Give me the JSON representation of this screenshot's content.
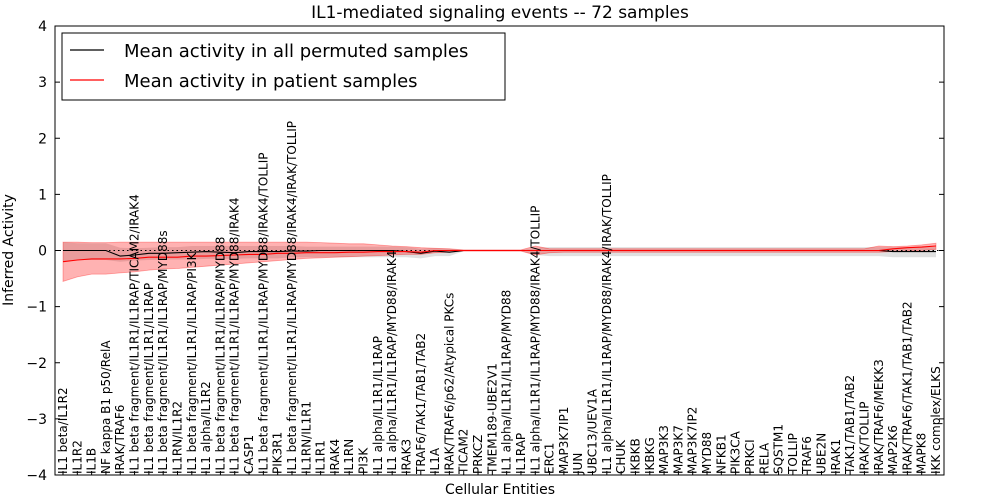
{
  "chart_data": {
    "type": "line",
    "title": "IL1-mediated signaling events -- 72 samples",
    "xlabel": "Cellular Entities",
    "ylabel": "Inferred Activity",
    "ylim": [
      -4,
      4
    ],
    "yticks": [
      -4,
      -3,
      -2,
      -1,
      0,
      1,
      2,
      3,
      4
    ],
    "legend_position": "top-left",
    "colors": {
      "permuted_line": "#000000",
      "patient_line": "#ff0000",
      "permuted_band": "#bbbbbb",
      "patient_band": "#ff0000"
    },
    "categories": [
      "IL1 beta/IL1R2",
      "IL1R2",
      "IL1B",
      "NF kappa B1 p50/RelA",
      "IRAK/TRAF6",
      "IL1 beta fragment/IL1R1/IL1RAP/TICAM2/IRAK4",
      "IL1 beta fragment/IL1R1/IL1RAP",
      "IL1 beta fragment/IL1R1/IL1RAP/MYD88s",
      "IL1RN/IL1R2",
      "IL1 beta fragment/IL1R1/IL1RAP/PI3K",
      "IL1 alpha/IL1R2",
      "IL1 beta fragment/IL1R1/IL1RAP/MYD88",
      "IL1 beta fragment/IL1R1/IL1RAP/MYD88/IRAK4",
      "CASP1",
      "IL1 beta fragment/IL1R1/IL1RAP/MYD88/IRAK4/TOLLIP",
      "PIK3R1",
      "IL1 beta fragment/IL1R1/IL1RAP/MYD88/IRAK4/IRAK/TOLLIP",
      "IL1RN/IL1R1",
      "IL1R1",
      "IRAK4",
      "IL1RN",
      "PI3K",
      "IL1 alpha/IL1R1/IL1RAP",
      "IL1 alpha/IL1R1/IL1RAP/MYD88/IRAK4",
      "IRAK3",
      "TRAF6/TAK1/TAB1/TAB2",
      "IL1A",
      "IRAK/TRAF6/p62/Atypical PKCs",
      "TICAM2",
      "PRKCZ",
      "TMEM189-UBE2V1",
      "IL1 alpha/IL1R1/IL1RAP/MYD88",
      "IL1RAP",
      "IL1 alpha/IL1R1/IL1RAP/MYD88/IRAK4/TOLLIP",
      "ERC1",
      "MAP3K7IP1",
      "JUN",
      "UBC13/UEV1A",
      "IL1 alpha/IL1R1/IL1RAP/MYD88/IRAK4/IRAK/TOLLIP",
      "CHUK",
      "IKBKB",
      "IKBKG",
      "MAP3K3",
      "MAP3K7",
      "MAP3K7IP2",
      "MYD88",
      "NFKB1",
      "PIK3CA",
      "PRKCI",
      "RELA",
      "SQSTM1",
      "TOLLIP",
      "TRAF6",
      "UBE2N",
      "IRAK1",
      "TAK1/TAB1/TAB2",
      "IRAK/TOLLIP",
      "IRAK/TRAF6/MEKK3",
      "MAP2K6",
      "IRAK/TRAF6/TAK1/TAB1/TAB2",
      "MAPK8",
      "IKK complex/ELKS"
    ],
    "series": [
      {
        "name": "Mean activity in all permuted samples",
        "values": [
          0.0,
          0.0,
          0.0,
          0.0,
          -0.1,
          -0.08,
          -0.05,
          -0.05,
          -0.04,
          -0.03,
          -0.02,
          -0.03,
          -0.04,
          -0.02,
          -0.02,
          -0.02,
          -0.01,
          -0.01,
          0.0,
          0.0,
          0.0,
          0.0,
          0.0,
          0.0,
          -0.02,
          -0.05,
          -0.01,
          -0.03,
          0.0,
          0.0,
          0.0,
          0.0,
          0.0,
          0.0,
          0.0,
          0.0,
          0.0,
          0.0,
          0.0,
          0.0,
          0.0,
          0.0,
          0.0,
          0.0,
          0.0,
          0.0,
          0.0,
          0.0,
          0.0,
          0.0,
          0.0,
          0.0,
          0.0,
          0.0,
          0.0,
          0.0,
          0.0,
          0.0,
          -0.02,
          -0.02,
          -0.02,
          -0.02
        ],
        "lower": [
          -0.2,
          -0.17,
          -0.17,
          -0.17,
          -0.2,
          -0.18,
          -0.17,
          -0.16,
          -0.16,
          -0.16,
          -0.15,
          -0.15,
          -0.15,
          -0.14,
          -0.14,
          -0.14,
          -0.12,
          -0.12,
          -0.12,
          -0.12,
          -0.12,
          -0.12,
          -0.12,
          -0.12,
          -0.12,
          -0.14,
          -0.1,
          -0.1,
          -0.01,
          -0.01,
          -0.01,
          -0.01,
          -0.01,
          -0.08,
          -0.1,
          -0.1,
          -0.1,
          -0.1,
          -0.1,
          -0.1,
          -0.1,
          -0.1,
          -0.1,
          -0.1,
          -0.1,
          -0.1,
          -0.1,
          -0.1,
          -0.1,
          -0.1,
          -0.1,
          -0.1,
          -0.1,
          -0.1,
          -0.1,
          -0.1,
          -0.1,
          -0.1,
          -0.12,
          -0.12,
          -0.12,
          -0.12
        ],
        "upper": [
          0.15,
          0.13,
          0.13,
          0.13,
          0.05,
          0.04,
          0.05,
          0.06,
          0.06,
          0.08,
          0.08,
          0.08,
          0.08,
          0.08,
          0.08,
          0.08,
          0.08,
          0.07,
          0.07,
          0.07,
          0.07,
          0.07,
          0.07,
          0.07,
          0.06,
          0.03,
          0.04,
          0.03,
          0.01,
          0.01,
          0.01,
          0.01,
          0.01,
          0.05,
          0.06,
          0.06,
          0.06,
          0.06,
          0.06,
          0.06,
          0.06,
          0.06,
          0.06,
          0.06,
          0.06,
          0.06,
          0.06,
          0.06,
          0.06,
          0.06,
          0.06,
          0.06,
          0.06,
          0.06,
          0.06,
          0.06,
          0.06,
          0.06,
          0.06,
          0.06,
          0.06,
          0.06
        ]
      },
      {
        "name": "Mean activity in patient samples",
        "values": [
          -0.2,
          -0.17,
          -0.15,
          -0.15,
          -0.15,
          -0.14,
          -0.12,
          -0.12,
          -0.12,
          -0.1,
          -0.1,
          -0.09,
          -0.08,
          -0.07,
          -0.07,
          -0.05,
          -0.05,
          -0.04,
          -0.04,
          -0.04,
          -0.03,
          -0.03,
          -0.02,
          -0.02,
          -0.02,
          -0.03,
          0.0,
          0.0,
          0.0,
          0.0,
          0.0,
          0.0,
          0.0,
          0.0,
          0.0,
          0.0,
          0.0,
          0.0,
          0.0,
          0.0,
          0.0,
          0.0,
          0.0,
          0.0,
          0.0,
          0.0,
          0.0,
          0.0,
          0.0,
          0.0,
          0.0,
          0.0,
          0.0,
          0.0,
          0.0,
          0.0,
          0.0,
          0.0,
          0.03,
          0.05,
          0.06,
          0.08
        ],
        "lower": [
          -0.55,
          -0.47,
          -0.42,
          -0.42,
          -0.4,
          -0.38,
          -0.35,
          -0.33,
          -0.32,
          -0.3,
          -0.28,
          -0.26,
          -0.24,
          -0.22,
          -0.2,
          -0.18,
          -0.16,
          -0.14,
          -0.13,
          -0.12,
          -0.11,
          -0.1,
          -0.09,
          -0.08,
          -0.07,
          -0.07,
          -0.04,
          -0.03,
          -0.01,
          -0.01,
          -0.01,
          -0.01,
          -0.01,
          -0.08,
          -0.04,
          -0.03,
          -0.03,
          -0.03,
          -0.03,
          -0.03,
          -0.03,
          -0.03,
          -0.03,
          -0.03,
          -0.03,
          -0.03,
          -0.03,
          -0.03,
          -0.03,
          -0.03,
          -0.03,
          -0.03,
          -0.03,
          -0.03,
          -0.03,
          -0.03,
          -0.03,
          -0.03,
          -0.02,
          -0.01,
          0.0,
          0.02
        ],
        "upper": [
          0.15,
          0.15,
          0.14,
          0.14,
          0.15,
          0.15,
          0.15,
          0.15,
          0.15,
          0.15,
          0.15,
          0.15,
          0.15,
          0.15,
          0.15,
          0.15,
          0.15,
          0.15,
          0.14,
          0.13,
          0.12,
          0.12,
          0.1,
          0.08,
          0.07,
          0.05,
          0.04,
          0.03,
          0.01,
          0.01,
          0.01,
          0.01,
          0.01,
          0.08,
          0.03,
          0.03,
          0.03,
          0.03,
          0.03,
          0.03,
          0.03,
          0.03,
          0.03,
          0.03,
          0.03,
          0.03,
          0.03,
          0.03,
          0.03,
          0.03,
          0.03,
          0.03,
          0.03,
          0.03,
          0.03,
          0.03,
          0.03,
          0.08,
          0.07,
          0.08,
          0.1,
          0.13
        ]
      }
    ]
  }
}
